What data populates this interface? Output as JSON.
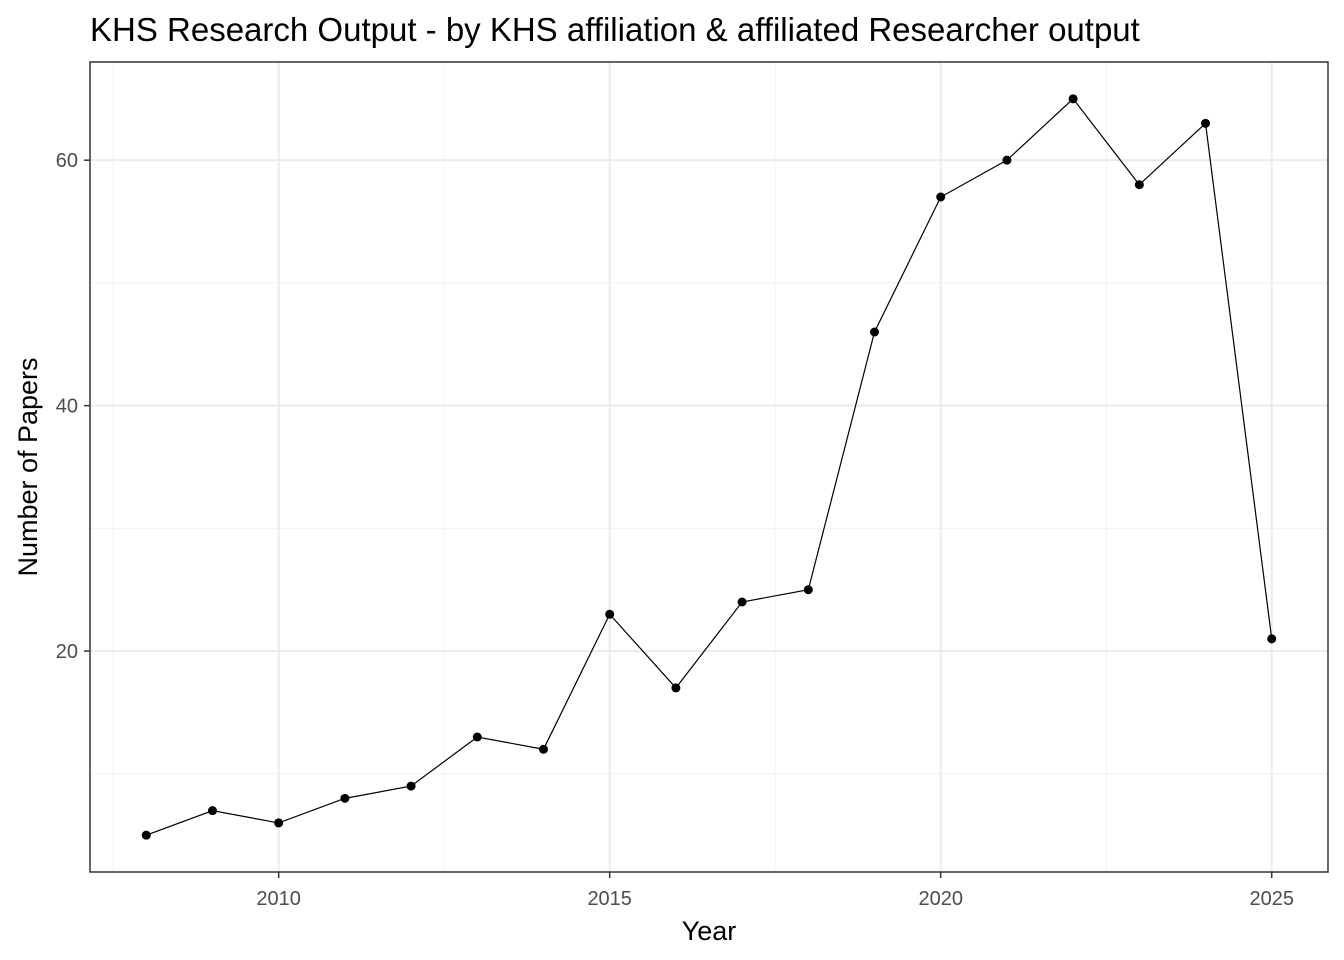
{
  "chart_data": {
    "type": "line",
    "title": "KHS Research Output - by KHS affiliation & affiliated Researcher output",
    "xlabel": "Year",
    "ylabel": "Number of Papers",
    "x": [
      2008,
      2009,
      2010,
      2011,
      2012,
      2013,
      2014,
      2015,
      2016,
      2017,
      2018,
      2019,
      2020,
      2021,
      2022,
      2023,
      2024,
      2025
    ],
    "series": [
      {
        "values": [
          5,
          7,
          6,
          8,
          9,
          13,
          12,
          23,
          17,
          24,
          25,
          46,
          57,
          60,
          65,
          58,
          63,
          21
        ]
      }
    ],
    "xlim": [
      2007.15,
      2025.85
    ],
    "ylim": [
      2,
      68
    ],
    "x_ticks": [
      2010,
      2015,
      2020,
      2025
    ],
    "x_tick_labels": [
      "2010",
      "2015",
      "2020",
      "2025"
    ],
    "x_minor_ticks": [
      2007.5,
      2012.5,
      2017.5,
      2022.5
    ],
    "y_ticks": [
      20,
      40,
      60
    ],
    "y_tick_labels": [
      "20",
      "40",
      "60"
    ],
    "y_minor_ticks": [
      10,
      30,
      50
    ],
    "grid": true,
    "legend": "none",
    "colors": {
      "line": "#000000",
      "point": "#000000",
      "grid": "#ebebeb",
      "tick_text": "#4d4d4d"
    }
  }
}
